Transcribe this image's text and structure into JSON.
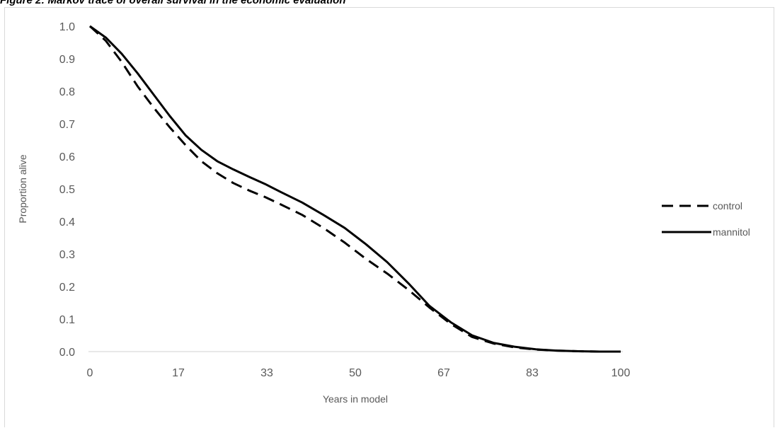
{
  "figure_caption": "Figure 2: Markov trace of overall survival in the economic evaluation",
  "chart_data": {
    "type": "line",
    "xlabel": "Years in model",
    "ylabel": "Proportion alive",
    "xlim": [
      0,
      100
    ],
    "ylim": [
      0,
      1.0
    ],
    "x_ticks": [
      "0",
      "17",
      "33",
      "50",
      "67",
      "83",
      "100"
    ],
    "y_ticks": [
      "0.0",
      "0.1",
      "0.2",
      "0.3",
      "0.4",
      "0.5",
      "0.6",
      "0.7",
      "0.8",
      "0.9",
      "1.0"
    ],
    "grid": false,
    "legend_position": "right",
    "series": [
      {
        "name": "control",
        "style": "dashed",
        "color": "#000000",
        "x": [
          0,
          3,
          6,
          9,
          12,
          15,
          18,
          21,
          24,
          27,
          30,
          33,
          36,
          40,
          44,
          48,
          52,
          56,
          60,
          64,
          68,
          72,
          76,
          80,
          84,
          88,
          92,
          96,
          100
        ],
        "y": [
          1.0,
          0.955,
          0.89,
          0.815,
          0.75,
          0.69,
          0.635,
          0.585,
          0.548,
          0.518,
          0.495,
          0.475,
          0.452,
          0.42,
          0.38,
          0.335,
          0.285,
          0.24,
          0.19,
          0.135,
          0.085,
          0.045,
          0.025,
          0.013,
          0.006,
          0.003,
          0.001,
          0.0,
          0.0
        ]
      },
      {
        "name": "mannitol",
        "style": "solid",
        "color": "#000000",
        "x": [
          0,
          3,
          6,
          9,
          12,
          15,
          18,
          21,
          24,
          27,
          30,
          33,
          36,
          40,
          44,
          48,
          52,
          56,
          60,
          64,
          68,
          72,
          76,
          80,
          84,
          88,
          92,
          96,
          100
        ],
        "y": [
          1.0,
          0.965,
          0.915,
          0.855,
          0.79,
          0.725,
          0.665,
          0.62,
          0.585,
          0.56,
          0.537,
          0.515,
          0.49,
          0.458,
          0.42,
          0.38,
          0.33,
          0.275,
          0.21,
          0.14,
          0.09,
          0.05,
          0.027,
          0.015,
          0.007,
          0.003,
          0.001,
          0.0,
          0.0
        ]
      }
    ]
  }
}
